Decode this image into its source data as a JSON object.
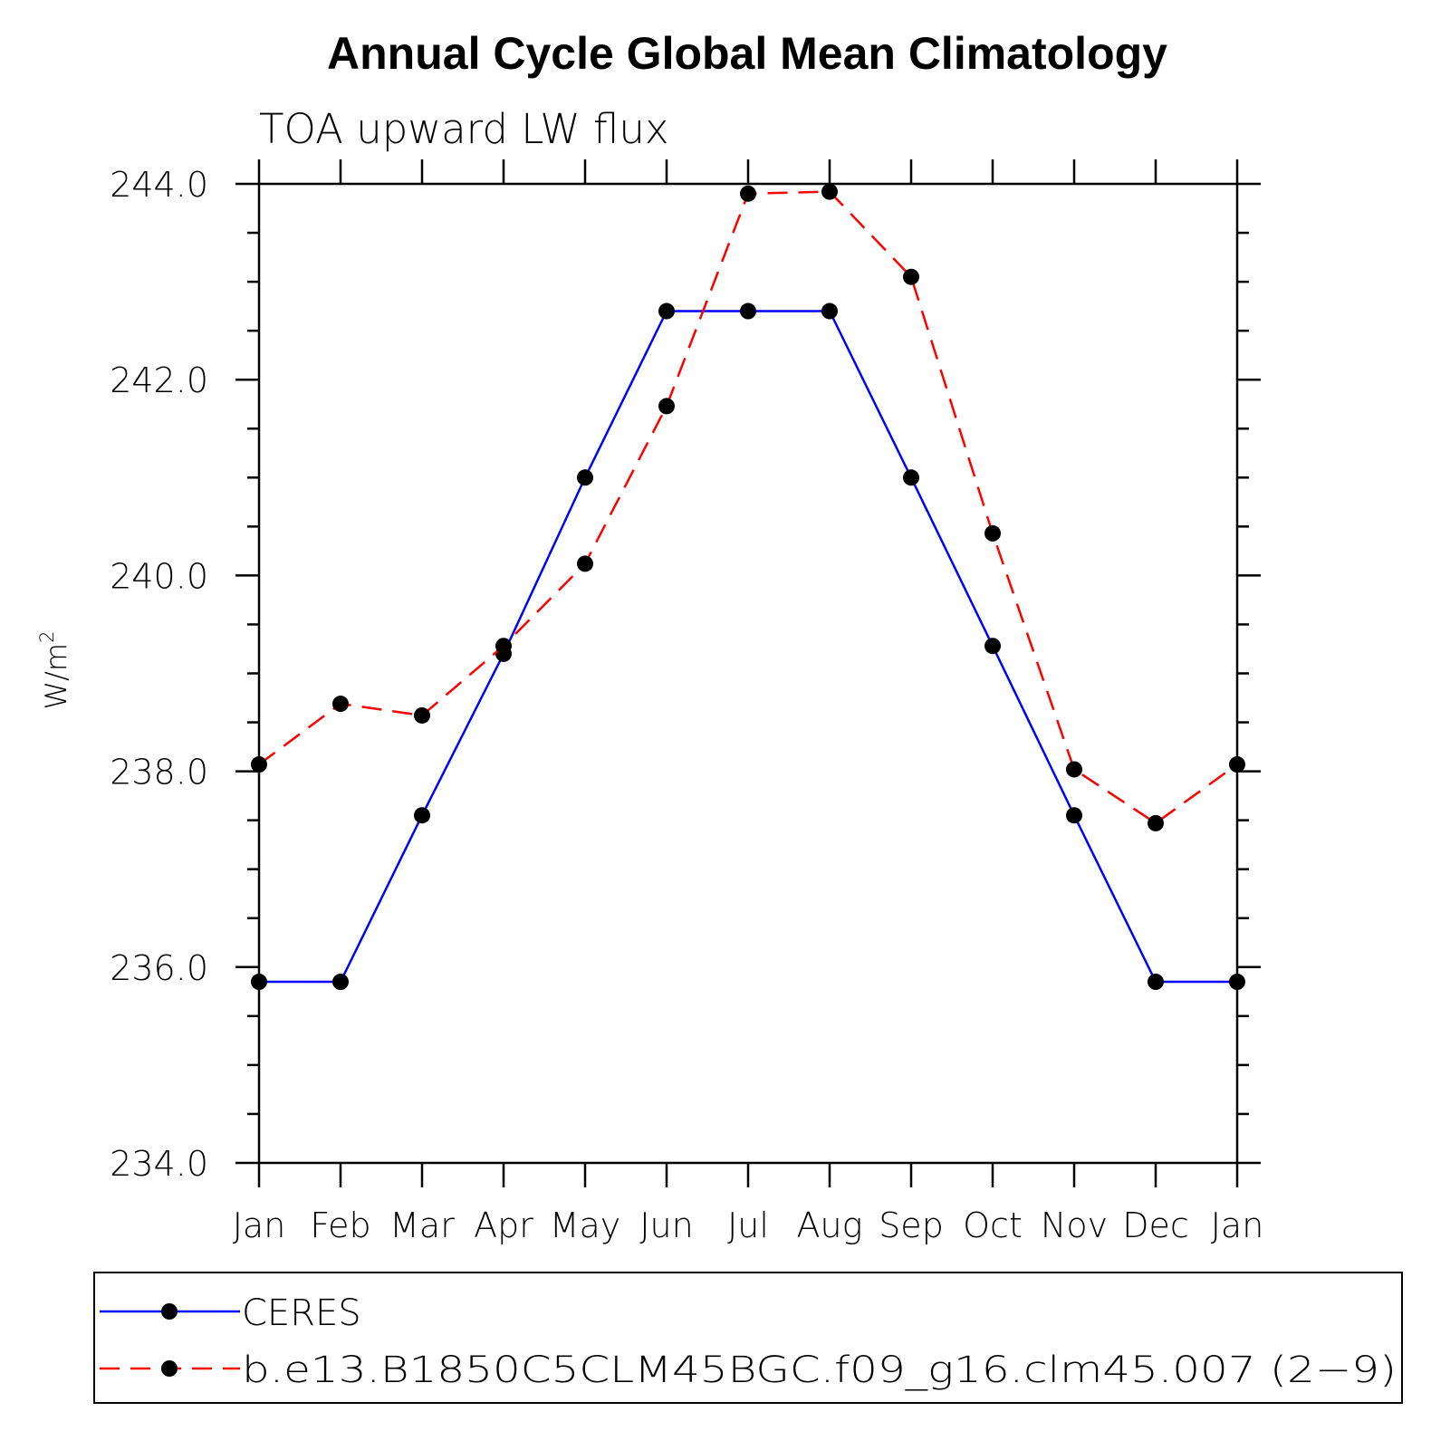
{
  "chart_data": {
    "type": "line",
    "title": "Annual Cycle Global Mean Climatology",
    "subtitle": "TOA upward LW flux",
    "xlabel": "",
    "ylabel": "W/m",
    "ylabel_superscript": "2",
    "categories": [
      "Jan",
      "Feb",
      "Mar",
      "Apr",
      "May",
      "Jun",
      "Jul",
      "Aug",
      "Sep",
      "Oct",
      "Nov",
      "Dec",
      "Jan"
    ],
    "ylim": [
      234.0,
      244.0
    ],
    "yticks": [
      {
        "value": 234.0,
        "label": "234.0"
      },
      {
        "value": 236.0,
        "label": "236.0"
      },
      {
        "value": 238.0,
        "label": "238.0"
      },
      {
        "value": 240.0,
        "label": "240.0"
      },
      {
        "value": 242.0,
        "label": "242.0"
      },
      {
        "value": 244.0,
        "label": "244.0"
      }
    ],
    "yminor_step": 0.5,
    "grid": false,
    "legend_position": "bottom",
    "series": [
      {
        "name": "CERES",
        "color": "#0000ff",
        "line_style": "solid",
        "marker": "filled-circle",
        "values": [
          235.85,
          235.85,
          237.55,
          239.2,
          241.0,
          242.7,
          242.7,
          242.7,
          241.0,
          239.28,
          237.55,
          235.85,
          235.85
        ]
      },
      {
        "name": "b.e13.B1850C5CLM45BGC.f09_g16.clm45.007 (2−9)",
        "color": "#ff0000",
        "line_style": "dashed",
        "marker": "filled-circle",
        "values": [
          238.07,
          238.69,
          238.57,
          239.28,
          240.12,
          241.73,
          243.9,
          243.92,
          243.05,
          240.43,
          238.02,
          237.47,
          238.07
        ]
      }
    ]
  }
}
